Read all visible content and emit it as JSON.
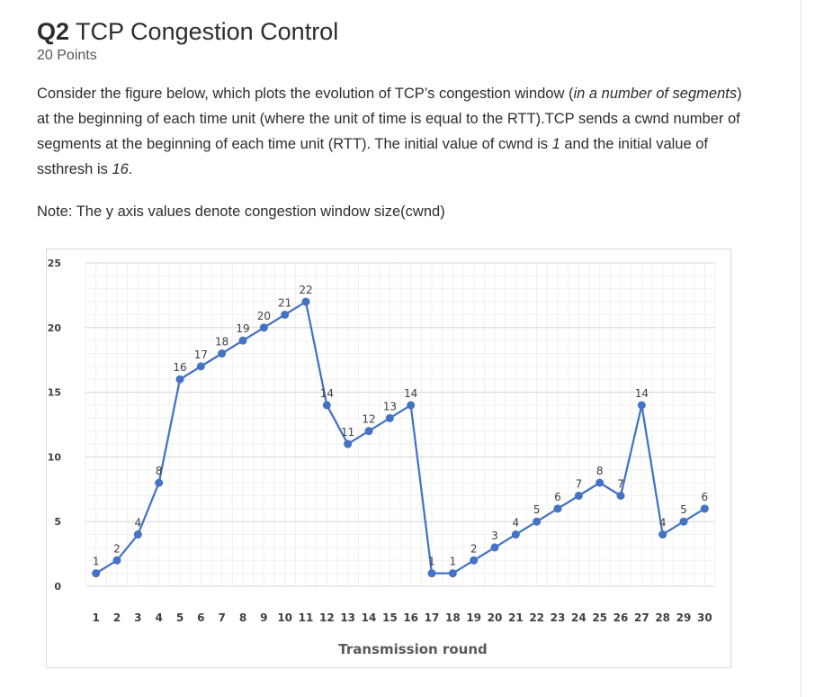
{
  "question": {
    "number": "Q2",
    "title": "TCP Congestion Control",
    "points": "20 Points",
    "body": [
      {
        "t": "Consider the figure below, which plots the evolution of TCP’s congestion window ("
      },
      {
        "t": "in a number of segments",
        "i": true
      },
      {
        "t": ") at the beginning of each time unit (where the unit of time is equal to the RTT).TCP sends a cwnd number of segments at the beginning of each time unit (RTT). The initial value of cwnd is "
      },
      {
        "t": "1",
        "i": true
      },
      {
        "t": " and the initial value of ssthresh is "
      },
      {
        "t": "16",
        "i": true
      },
      {
        "t": "."
      }
    ],
    "note": "Note: The y axis values denote congestion window size(cwnd)"
  },
  "chart_data": {
    "type": "line",
    "title": "",
    "xlabel": "Transmission round",
    "ylabel": "",
    "x": [
      1,
      2,
      3,
      4,
      5,
      6,
      7,
      8,
      9,
      10,
      11,
      12,
      13,
      14,
      15,
      16,
      17,
      18,
      19,
      20,
      21,
      22,
      23,
      24,
      25,
      26,
      27,
      28,
      29,
      30
    ],
    "series": [
      {
        "values": [
          1,
          2,
          4,
          8,
          16,
          17,
          18,
          19,
          20,
          21,
          22,
          14,
          11,
          12,
          13,
          14,
          1,
          1,
          2,
          3,
          4,
          5,
          6,
          7,
          8,
          7,
          14,
          4,
          5,
          6
        ]
      }
    ],
    "data_labels": [
      "1",
      "2",
      "4",
      "8",
      "16",
      "17",
      "18",
      "19",
      "20",
      "21",
      "22",
      "14",
      "11",
      "12",
      "13",
      "14",
      "1",
      "1",
      "2",
      "3",
      "4",
      "5",
      "6",
      "7",
      "8",
      "7",
      "14",
      "4",
      "5",
      "6"
    ],
    "ylim": [
      0,
      25
    ],
    "y_ticks": [
      0,
      5,
      10,
      15,
      20,
      25
    ],
    "grid": true,
    "line_color": "#4472c4",
    "label_color": "#404040"
  }
}
